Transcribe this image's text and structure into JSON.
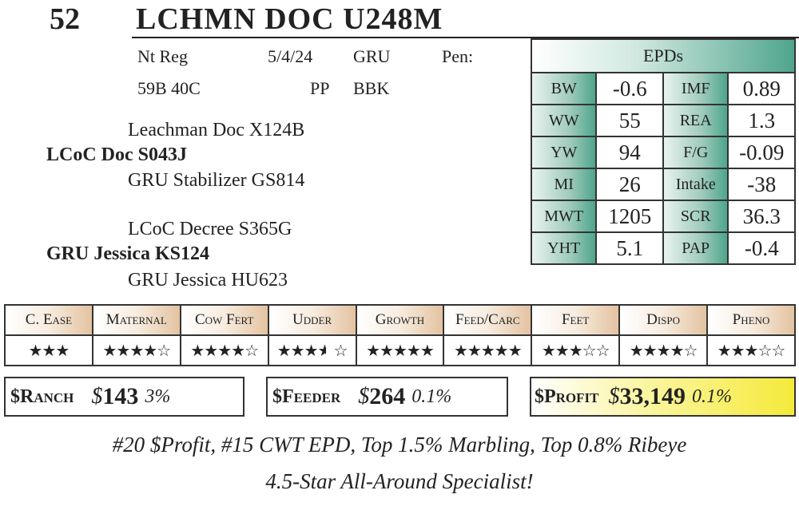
{
  "lot": {
    "number": "52",
    "name": "LCHMN DOC U248M"
  },
  "info": {
    "reg": "Nt Reg",
    "date": "5/4/24",
    "breeder": "GRU",
    "pen": "Pen:",
    "tattoo": "59B 40C",
    "polled": "PP",
    "color": "BBK"
  },
  "pedigree": {
    "sire_sire": "Leachman Doc X124B",
    "sire": "LCoC Doc S043J",
    "sire_dam": "GRU Stabilizer GS814",
    "dam_sire": "LCoC Decree S365G",
    "dam": "GRU Jessica KS124",
    "dam_dam": "GRU Jessica HU623"
  },
  "epds": {
    "title": "EPDs",
    "rows": [
      [
        {
          "l": "BW",
          "v": "-0.6"
        },
        {
          "l": "IMF",
          "v": "0.89"
        }
      ],
      [
        {
          "l": "WW",
          "v": "55"
        },
        {
          "l": "REA",
          "v": "1.3"
        }
      ],
      [
        {
          "l": "YW",
          "v": "94"
        },
        {
          "l": "F/G",
          "v": "-0.09"
        }
      ],
      [
        {
          "l": "MI",
          "v": "26"
        },
        {
          "l": "Intake",
          "v": "-38"
        }
      ],
      [
        {
          "l": "MWT",
          "v": "1205"
        },
        {
          "l": "SCR",
          "v": "36.3"
        }
      ],
      [
        {
          "l": "YHT",
          "v": "5.1"
        },
        {
          "l": "PAP",
          "v": "-0.4"
        }
      ]
    ]
  },
  "traits": [
    {
      "label": "C. Ease",
      "rating": 3,
      "out_of": 3
    },
    {
      "label": "Maternal",
      "rating": 4,
      "out_of": 5
    },
    {
      "label": "Cow Fert",
      "rating": 4,
      "out_of": 5
    },
    {
      "label": "Udder",
      "rating": 3.5,
      "out_of": 5
    },
    {
      "label": "Growth",
      "rating": 5,
      "out_of": 5
    },
    {
      "label": "Feed/Carc",
      "rating": 5,
      "out_of": 5
    },
    {
      "label": "Feet",
      "rating": 3,
      "out_of": 5
    },
    {
      "label": "Dispo",
      "rating": 4,
      "out_of": 5
    },
    {
      "label": "Pheno",
      "rating": 3,
      "out_of": 5
    }
  ],
  "indexes": {
    "ranch": {
      "label": "$Ranch",
      "dollar": "$",
      "value": "143",
      "pct": "3%"
    },
    "feeder": {
      "label": "$Feeder",
      "dollar": "$",
      "value": "264",
      "pct": "0.1%"
    },
    "profit": {
      "label": "$Profit",
      "dollar": "$",
      "value": "33,149",
      "pct": "0.1%",
      "highlight": "#f5ea3a"
    }
  },
  "footer": {
    "line1": "#20 $Profit, #15 CWT EPD, Top 1.5% Marbling, Top 0.8% Ribeye",
    "line2": "4.5-Star All-Around Specialist!"
  }
}
